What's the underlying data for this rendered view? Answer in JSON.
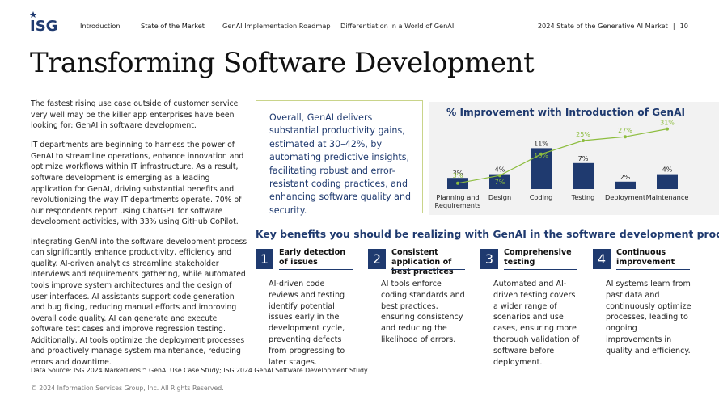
{
  "header": {
    "logo_text": "ISG",
    "nav": [
      "Introduction",
      "State of the Market",
      "GenAI Implementation Roadmap",
      "Differentiation in a World of GenAI"
    ],
    "active_nav": "State of the Market",
    "report_title": "2024 State of the Generative AI Market",
    "separator": "|",
    "page_number": "10"
  },
  "title": "Transforming Software Development",
  "left_column": [
    "The fastest rising use case outside of customer service very well may be the killer app enterprises have been looking for: GenAI in software development.",
    "IT departments are beginning to harness the power of GenAI to streamline operations, enhance innovation and optimize workflows within IT infrastructure. As a result, software development is emerging as a leading application for GenAI, driving substantial benefits and revolutionizing the way IT departments operate. 70% of our respondents report using ChatGPT for software development activities, with 33% using GitHub CoPilot.",
    "Integrating GenAI into the software development process can significantly enhance productivity, efficiency and quality. AI-driven analytics streamline stakeholder interviews and requirements gathering, while automated tools improve system architectures and the design of user interfaces. AI assistants support code generation and bug fixing, reducing manual efforts and improving overall code quality. AI can generate and execute software test cases and improve regression testing. Additionally, AI tools optimize the deployment processes and proactively manage system maintenance, reducing errors and downtime."
  ],
  "callout": "Overall, GenAI delivers substantial productivity gains, estimated at 30–42%, by automating predictive insights, facilitating robust and error-resistant coding practices, and enhancing software quality and security.",
  "chart_data": {
    "type": "bar",
    "title": "% Improvement with Introduction of GenAI",
    "categories": [
      "Planning and Requirements",
      "Design",
      "Coding",
      "Testing",
      "Deployment",
      "Maintenance"
    ],
    "series": [
      {
        "values": [
          3,
          4,
          11,
          7,
          2,
          4
        ],
        "labels": [
          "3%",
          "4%",
          "11%",
          "7%",
          "2%",
          "4%"
        ],
        "color": "#1f3a6f",
        "kind": "bar"
      },
      {
        "values": [
          3,
          7,
          18,
          25,
          27,
          31
        ],
        "labels": [
          "3%",
          "7%",
          "18%",
          "25%",
          "27%",
          "31%"
        ],
        "color": "#8dbd3e",
        "kind": "line"
      }
    ],
    "xlabel": "",
    "ylabel": "",
    "grid": false,
    "legend": "none"
  },
  "key_benefits": {
    "title": "Key benefits you should be realizing with GenAI in the software development process",
    "cards": [
      {
        "number": "1",
        "title": "Early detection of issues",
        "body": "AI-driven code reviews and testing identify potential issues early in the development cycle, preventing defects from progressing to later stages."
      },
      {
        "number": "2",
        "title": "Consistent application of best practices",
        "body": "AI tools enforce coding standards and best practices, ensuring consistency and reducing the likelihood of errors."
      },
      {
        "number": "3",
        "title": "Comprehensive testing",
        "body": "Automated and AI-driven testing covers a wider range of scenarios and use cases, ensuring more thorough validation of software before deployment."
      },
      {
        "number": "4",
        "title": "Continuous improvement",
        "body": "AI systems learn from past data and continuously optimize processes, leading to ongoing improvements in quality and efficiency."
      }
    ]
  },
  "source": "Data Source: ISG 2024 MarketLens™ GenAI Use Case Study; ISG 2024 GenAI Software Development Study",
  "copyright": "© 2024 Information Services Group, Inc. All Rights Reserved.",
  "colors": {
    "brand_navy": "#1f3a6f",
    "accent_green": "#8dbd3e",
    "callout_border": "#c9d48a"
  }
}
